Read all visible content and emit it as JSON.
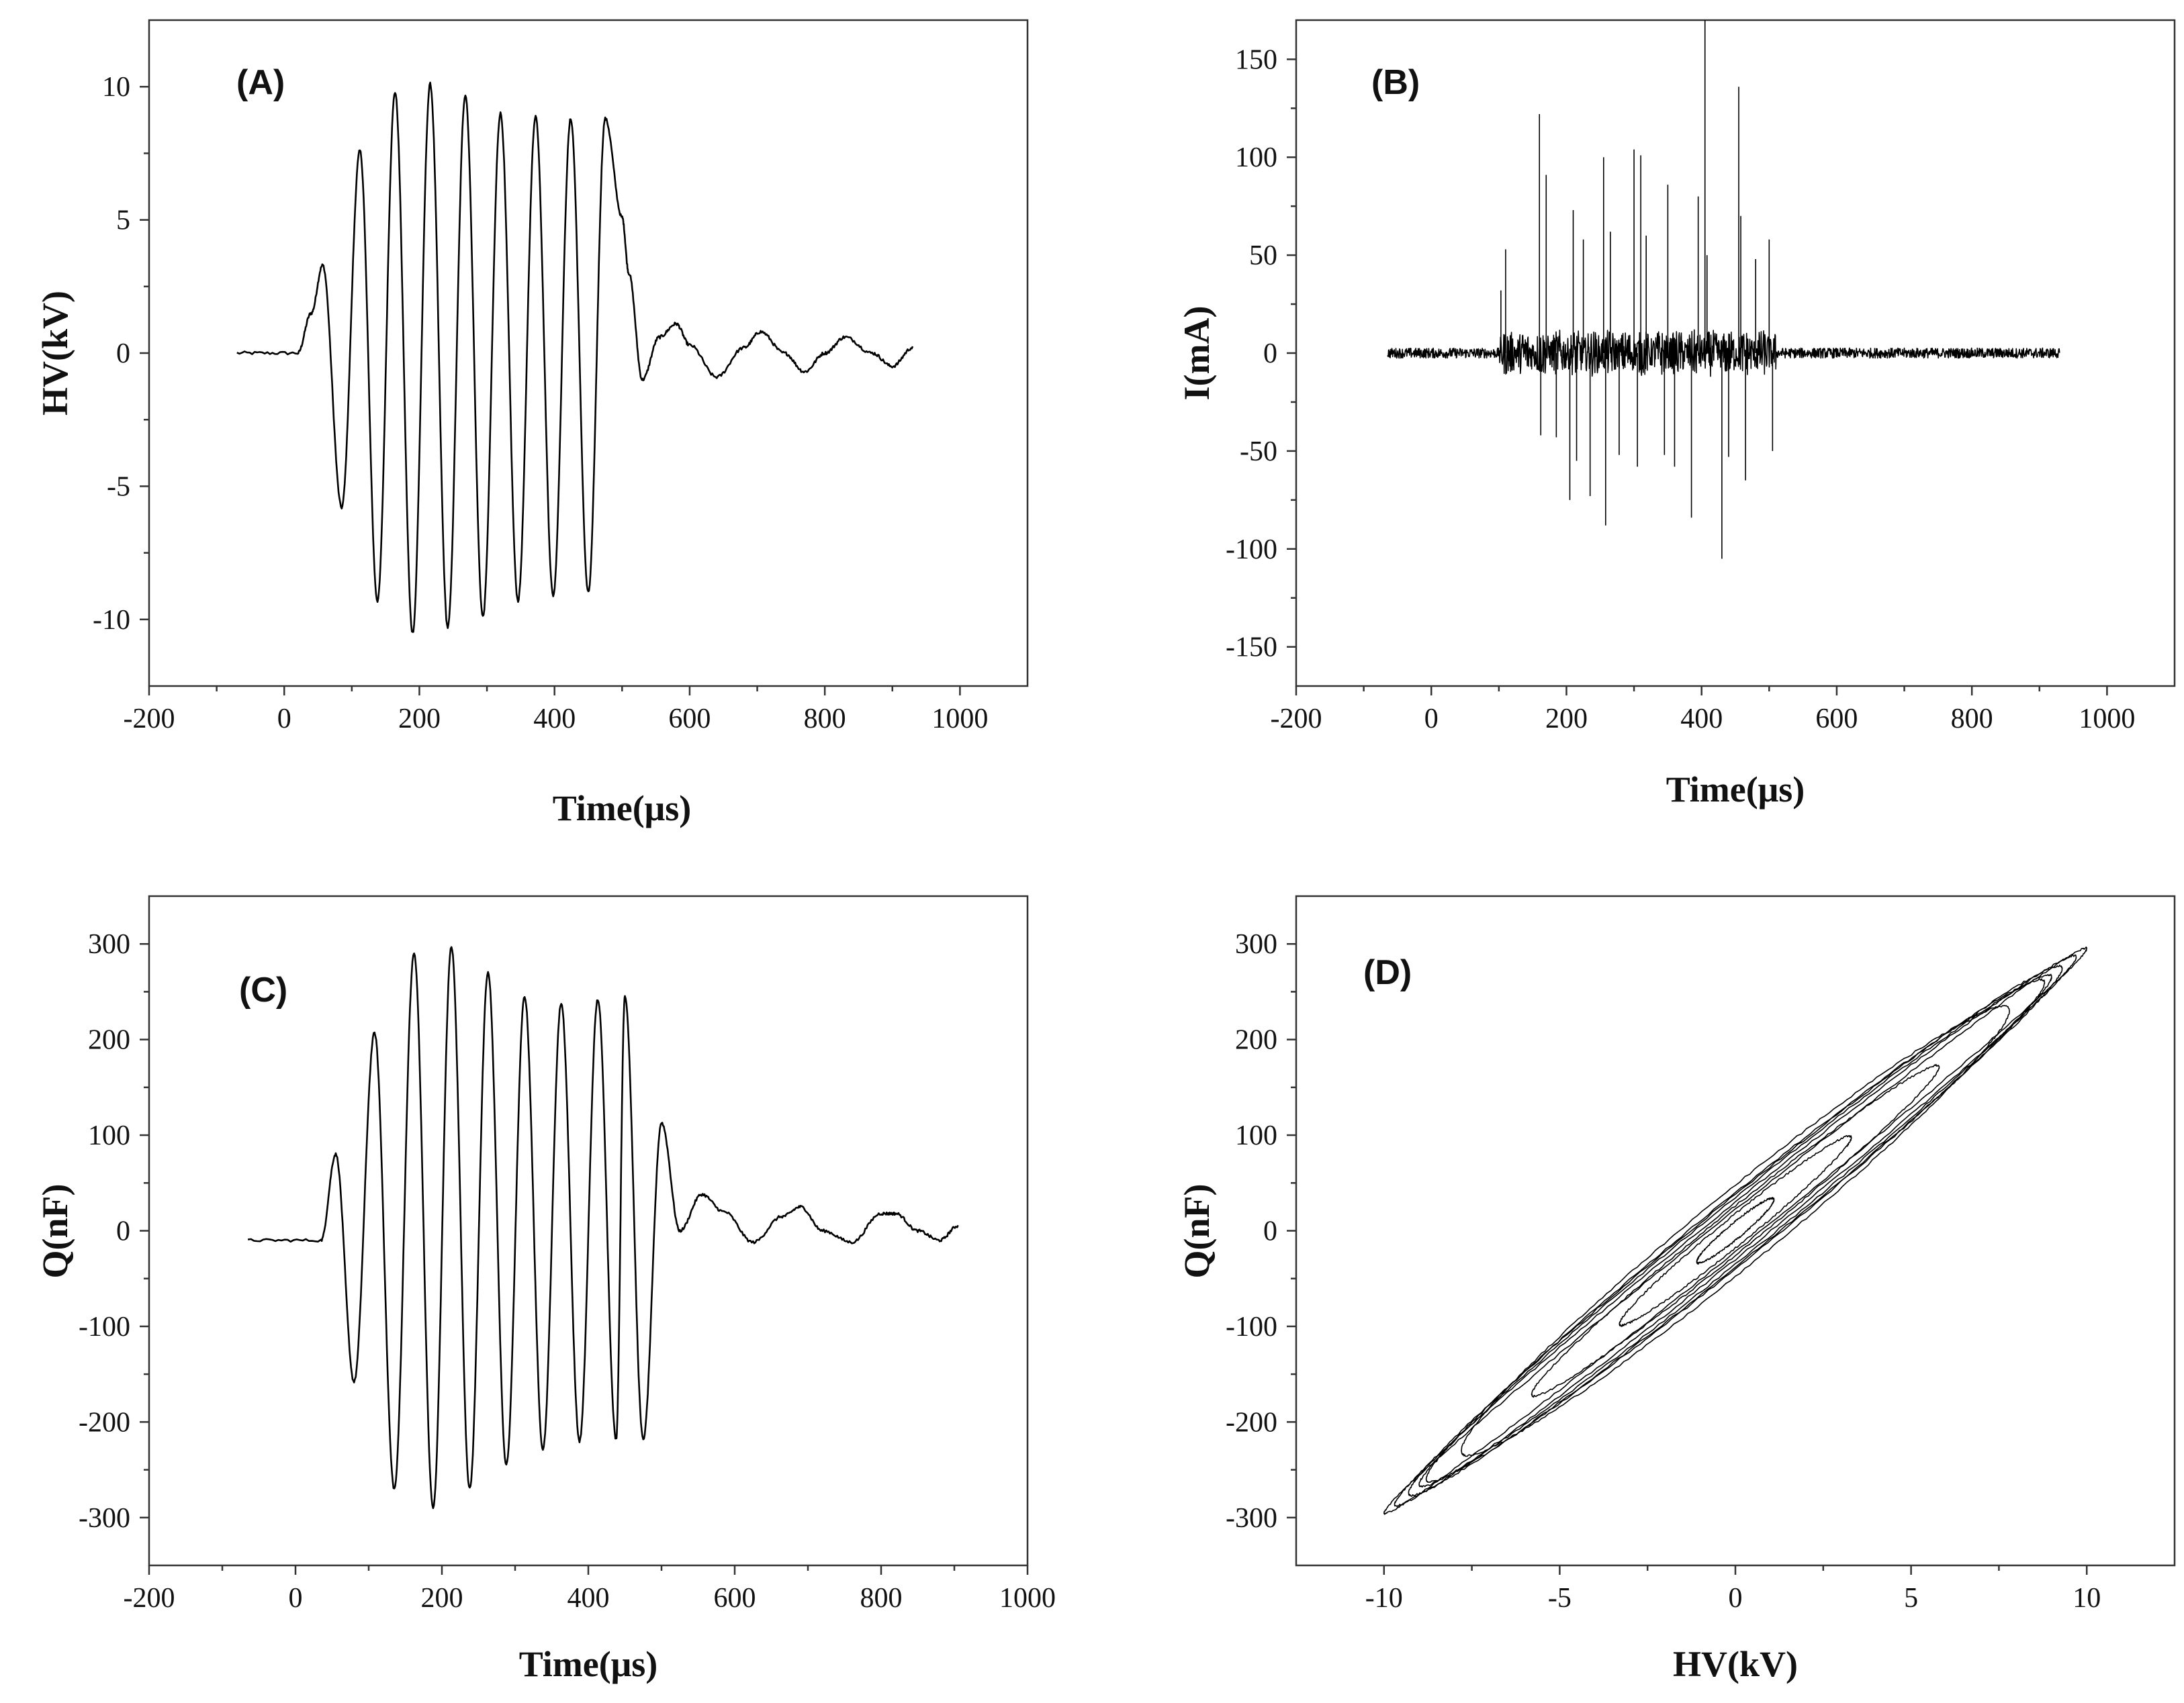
{
  "chart_data": [
    {
      "id": "A",
      "type": "line",
      "panel_label": "(A)",
      "xlabel": "Time(μs)",
      "ylabel": "HV(kV)",
      "xlim": [
        -200,
        1100
      ],
      "ylim": [
        -12.5,
        12.5
      ],
      "xticks": [
        -200,
        0,
        200,
        400,
        600,
        800,
        1000
      ],
      "xtick_labels": [
        "-200",
        "0",
        "200",
        "400",
        "600",
        "800",
        "1000"
      ],
      "yticks": [
        -10,
        -5,
        0,
        5,
        10
      ],
      "ytick_labels": [
        "-10",
        "-5",
        "0",
        "5",
        "10"
      ],
      "series": [
        {
          "name": "HV",
          "x": [
            -70,
            20,
            40,
            57,
            85,
            112,
            138,
            164,
            190,
            216,
            242,
            268,
            294,
            320,
            346,
            372,
            398,
            424,
            450,
            475,
            500,
            510,
            530,
            555,
            580,
            600,
            640,
            680,
            705,
            740,
            770,
            800,
            830,
            870,
            900,
            930
          ],
          "y": [
            0,
            0,
            1.5,
            3.3,
            -5.8,
            7.6,
            -9.3,
            9.8,
            -10.5,
            10.1,
            -10.3,
            9.7,
            -9.9,
            9.0,
            -9.3,
            8.9,
            -9.1,
            8.8,
            -9.0,
            8.8,
            5.1,
            3.0,
            -1.0,
            0.6,
            1.1,
            0.3,
            -0.9,
            0.2,
            0.8,
            0,
            -0.7,
            0,
            0.6,
            0,
            -0.5,
            0.2
          ]
        }
      ]
    },
    {
      "id": "B",
      "type": "line",
      "panel_label": "(B)",
      "xlabel": "Time(μs)",
      "ylabel": "I(mA)",
      "xlim": [
        -200,
        1100
      ],
      "ylim": [
        -170,
        170
      ],
      "xticks": [
        -200,
        0,
        200,
        400,
        600,
        800,
        1000
      ],
      "xtick_labels": [
        "-200",
        "0",
        "200",
        "400",
        "600",
        "800",
        "1000"
      ],
      "yticks": [
        -150,
        -100,
        -50,
        0,
        50,
        100,
        150
      ],
      "ytick_labels": [
        "-150",
        "-100",
        "-50",
        "0",
        "50",
        "100",
        "150"
      ],
      "noise_range": [
        -65,
        930
      ],
      "spikes_x": [
        103,
        110,
        160,
        162,
        170,
        185,
        205,
        210,
        215,
        225,
        235,
        255,
        258,
        265,
        278,
        300,
        305,
        310,
        318,
        345,
        350,
        360,
        385,
        395,
        405,
        408,
        430,
        440,
        455,
        458,
        465,
        480,
        500,
        505
      ],
      "spikes_y": [
        32,
        53,
        122,
        -42,
        91,
        -43,
        -75,
        73,
        -55,
        58,
        -73,
        100,
        -88,
        62,
        -52,
        104,
        -58,
        101,
        60,
        -52,
        86,
        -58,
        -84,
        80,
        170,
        50,
        -105,
        -53,
        136,
        70,
        -65,
        48,
        58,
        -50
      ]
    },
    {
      "id": "C",
      "type": "line",
      "panel_label": "(C)",
      "xlabel": "Time(μs)",
      "ylabel": "Q(nF)",
      "xlim": [
        -200,
        1000
      ],
      "ylim": [
        -350,
        350
      ],
      "xticks": [
        -200,
        0,
        200,
        400,
        600,
        800,
        1000
      ],
      "xtick_labels": [
        "-200",
        "0",
        "200",
        "400",
        "600",
        "800",
        "1000"
      ],
      "yticks": [
        -300,
        -200,
        -100,
        0,
        100,
        200,
        300
      ],
      "ytick_labels": [
        "-300",
        "-200",
        "-100",
        "0",
        "100",
        "200",
        "300"
      ],
      "series": [
        {
          "name": "Q",
          "x": [
            -65,
            35,
            55,
            80,
            108,
            135,
            162,
            188,
            213,
            238,
            263,
            288,
            313,
            338,
            363,
            388,
            413,
            438,
            450,
            475,
            500,
            525,
            555,
            585,
            625,
            665,
            690,
            720,
            760,
            800,
            820,
            850,
            880,
            905
          ],
          "y": [
            -10,
            -10,
            80,
            -158,
            207,
            -270,
            290,
            -290,
            297,
            -270,
            270,
            -245,
            245,
            -228,
            238,
            -220,
            242,
            -218,
            246,
            -218,
            113,
            0,
            38,
            20,
            -12,
            15,
            25,
            0,
            -12,
            18,
            18,
            0,
            -10,
            5
          ]
        }
      ]
    },
    {
      "id": "D",
      "type": "line",
      "panel_label": "(D)",
      "xlabel": "HV(kV)",
      "ylabel": "Q(nF)",
      "xlim": [
        -12.5,
        12.5
      ],
      "ylim": [
        -350,
        350
      ],
      "xticks": [
        -10,
        -5,
        0,
        5,
        10
      ],
      "xtick_labels": [
        "-10",
        "-5",
        "0",
        "5",
        "10"
      ],
      "yticks": [
        -300,
        -200,
        -100,
        0,
        100,
        200,
        300
      ],
      "ytick_labels": [
        "-300",
        "-200",
        "-100",
        "0",
        "100",
        "200",
        "300"
      ],
      "loops": [
        {
          "amplitude_kv": 10.0,
          "open_nf": 22
        },
        {
          "amplitude_kv": 9.7,
          "open_nf": 30
        },
        {
          "amplitude_kv": 9.3,
          "open_nf": 38
        },
        {
          "amplitude_kv": 9.0,
          "open_nf": 35
        },
        {
          "amplitude_kv": 8.8,
          "open_nf": 40
        },
        {
          "amplitude_kv": 7.8,
          "open_nf": 48
        },
        {
          "amplitude_kv": 5.8,
          "open_nf": 26
        },
        {
          "amplitude_kv": 3.3,
          "open_nf": 18
        },
        {
          "amplitude_kv": 1.1,
          "open_nf": 10
        }
      ]
    }
  ]
}
